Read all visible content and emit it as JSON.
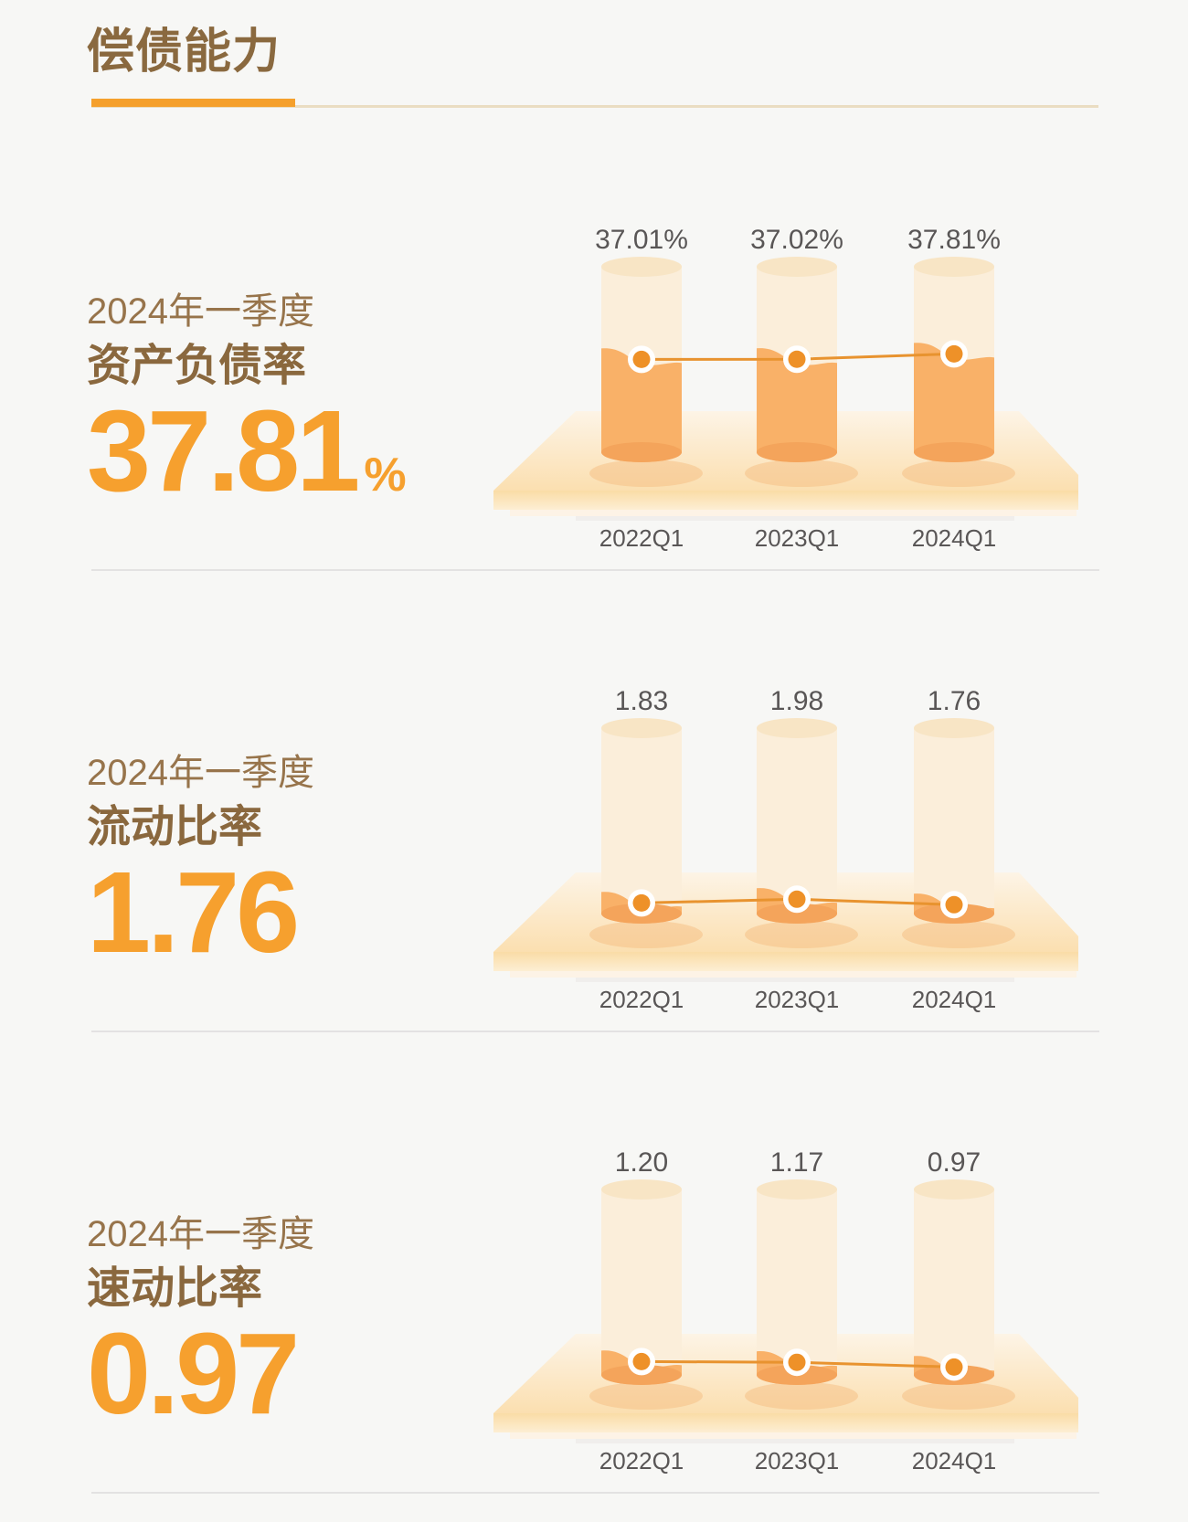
{
  "title": "偿债能力",
  "palette": {
    "accent_orange": "#F5A02C",
    "title_brown": "#8A693F",
    "period_brown": "#97744B",
    "value_orange": "#F6A02E",
    "label_gray": "#595656",
    "cylinder_body": "#FBEEDA",
    "cylinder_top": "#F8E5C5",
    "cylinder_fill": "#F9B168",
    "cylinder_fill_bottom": "#F4A45B",
    "dot_orange": "#EE9128",
    "line_orange": "#E8932F",
    "platform_back": "#FDF4E6",
    "platform_front": "#FBDFB0",
    "platform_face_top": "#FADCA6",
    "platform_face_bottom": "#FDEED3"
  },
  "sections": [
    {
      "period": "2024年一季度",
      "metric_name": "资产负债率",
      "value": "37.81",
      "unit": "%",
      "chart_data": {
        "type": "bar",
        "subtype": "cylinder-with-line-overlay",
        "categories": [
          "2022Q1",
          "2023Q1",
          "2024Q1"
        ],
        "values": [
          37.01,
          37.02,
          37.81
        ],
        "labels": [
          "37.01%",
          "37.02%",
          "37.81%"
        ],
        "title": "",
        "xlabel": "",
        "ylabel": "",
        "legend": "none",
        "grid": false,
        "fill_level": 0.56
      }
    },
    {
      "period": "2024年一季度",
      "metric_name": "流动比率",
      "value": "1.76",
      "unit": "",
      "chart_data": {
        "type": "bar",
        "subtype": "cylinder-with-line-overlay",
        "categories": [
          "2022Q1",
          "2023Q1",
          "2024Q1"
        ],
        "values": [
          1.83,
          1.98,
          1.76
        ],
        "labels": [
          "1.83",
          "1.98",
          "1.76"
        ],
        "title": "",
        "xlabel": "",
        "ylabel": "",
        "legend": "none",
        "grid": false,
        "fill_level": 0.11
      }
    },
    {
      "period": "2024年一季度",
      "metric_name": "速动比率",
      "value": "0.97",
      "unit": "",
      "chart_data": {
        "type": "bar",
        "subtype": "cylinder-with-line-overlay",
        "categories": [
          "2022Q1",
          "2023Q1",
          "2024Q1"
        ],
        "values": [
          1.2,
          1.17,
          0.97
        ],
        "labels": [
          "1.20",
          "1.17",
          "0.97"
        ],
        "title": "",
        "xlabel": "",
        "ylabel": "",
        "legend": "none",
        "grid": false,
        "fill_level": 0.11
      }
    }
  ]
}
